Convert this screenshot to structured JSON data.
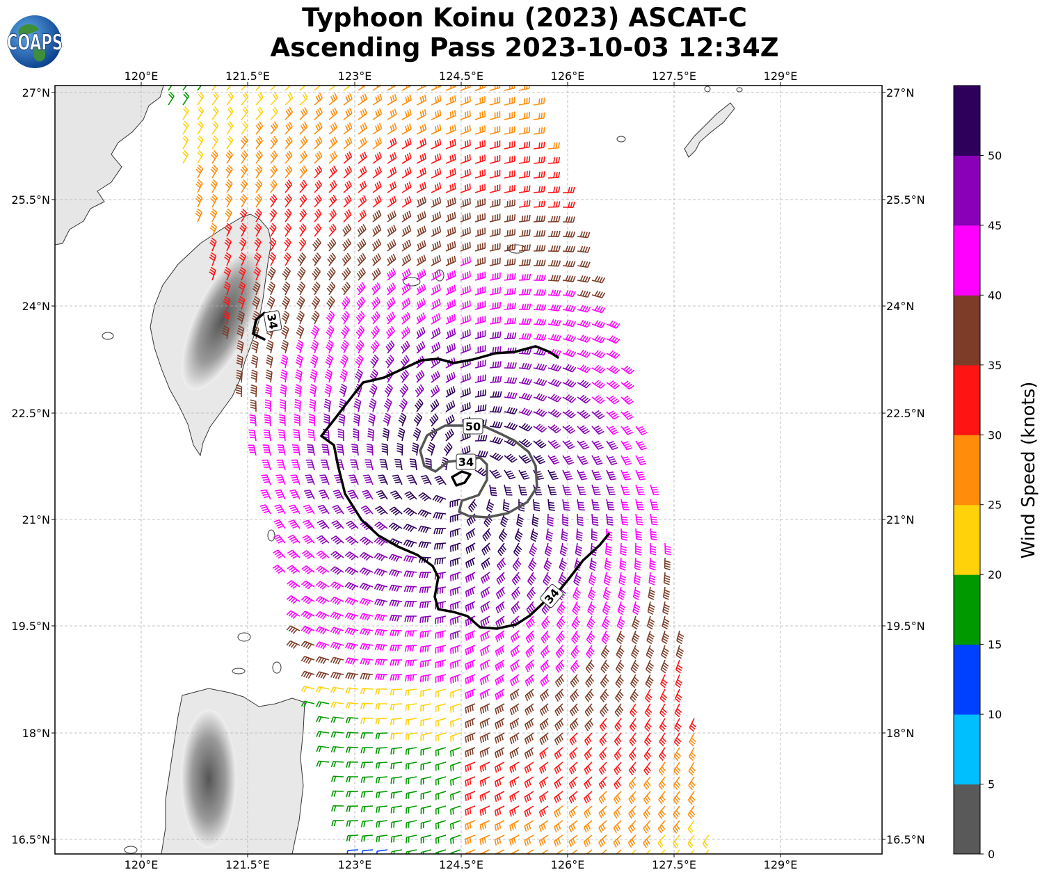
{
  "title": {
    "line1": "Typhoon Koinu (2023) ASCAT-C",
    "line2": "Ascending Pass 2023-10-03 12:34Z"
  },
  "logo": {
    "text": "COAPS",
    "icon": "globe-icon"
  },
  "map": {
    "lon_ticks": [
      "120°E",
      "121.5°E",
      "123°E",
      "124.5°E",
      "126°E",
      "127.5°E",
      "129°E"
    ],
    "lat_ticks": [
      "27°N",
      "25.5°N",
      "24°N",
      "22.5°N",
      "21°N",
      "19.5°N",
      "18°N",
      "16.5°N"
    ],
    "contours": [
      {
        "label": "34",
        "color": "#000000"
      },
      {
        "label": "50",
        "color": "#555555"
      },
      {
        "label": "34",
        "color": "#000000"
      },
      {
        "label": "34",
        "color": "#000000"
      }
    ],
    "grid": true,
    "land_color": "#e6e6e6"
  },
  "colorbar": {
    "label": "Wind Speed (knots)",
    "ticks": [
      "0",
      "5",
      "10",
      "15",
      "20",
      "25",
      "30",
      "35",
      "40",
      "45",
      "50"
    ],
    "colors": [
      "#595959",
      "#00bfff",
      "#0040ff",
      "#009900",
      "#ffd20a",
      "#ff8c0a",
      "#ff1414",
      "#7d3c28",
      "#ff00ff",
      "#8a00b8",
      "#2e005c"
    ]
  }
}
